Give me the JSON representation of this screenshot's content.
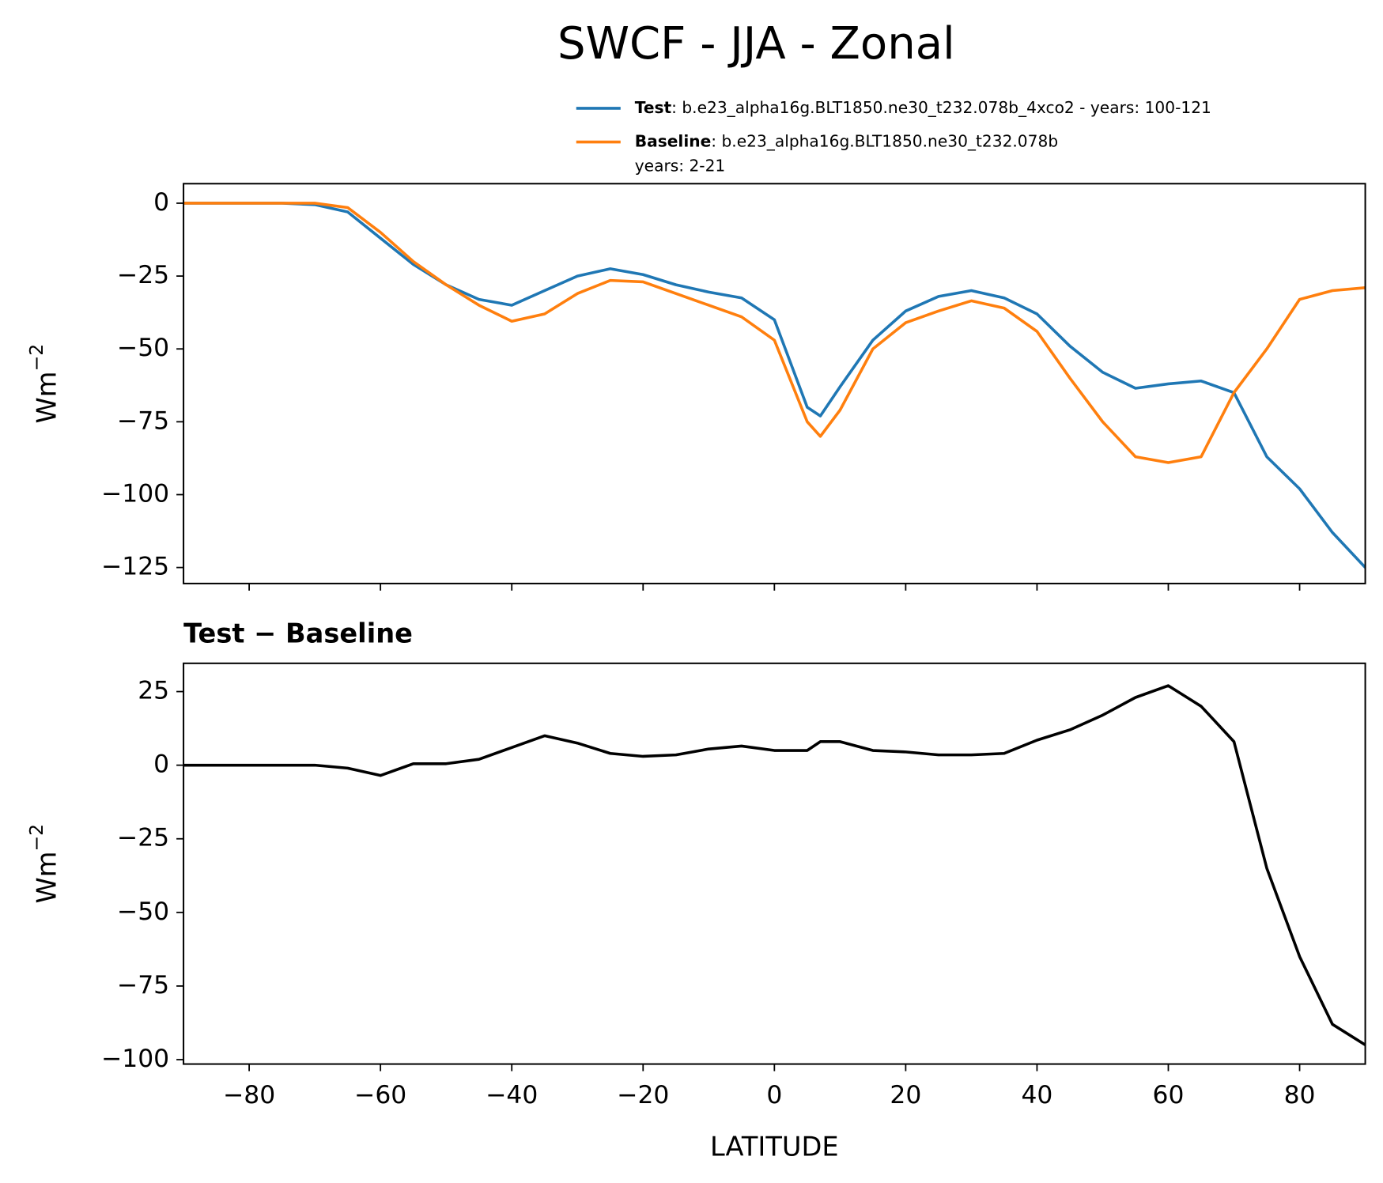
{
  "title": "SWCF - JJA - Zonal",
  "chart_data": [
    {
      "type": "line",
      "ylabel": "Wm",
      "ylabel_superscript": "−2",
      "x": [
        -90,
        -85,
        -80,
        -75,
        -70,
        -65,
        -60,
        -55,
        -50,
        -45,
        -40,
        -35,
        -30,
        -25,
        -20,
        -15,
        -10,
        -5,
        0,
        5,
        7,
        10,
        15,
        20,
        25,
        30,
        35,
        40,
        45,
        50,
        55,
        60,
        65,
        70,
        75,
        80,
        85,
        90
      ],
      "series": [
        {
          "name": "Test",
          "description": [
            ": b.e23_alpha16g.BLT1850.ne30_t232.078b_4xco2 - years: 100-121"
          ],
          "color": "#1f77b4",
          "values": [
            0,
            0,
            0,
            0,
            -0.5,
            -3,
            -12,
            -21,
            -28,
            -33,
            -35,
            -30,
            -25,
            -22.5,
            -24.5,
            -28,
            -30.5,
            -32.5,
            -40,
            -70,
            -73,
            -63,
            -47,
            -37,
            -32,
            -30,
            -32.5,
            -38,
            -49,
            -58,
            -63.5,
            -62,
            -61,
            -65,
            -87,
            -98,
            -113,
            -125
          ]
        },
        {
          "name": "Baseline",
          "description": [
            ": b.e23_alpha16g.BLT1850.ne30_t232.078b",
            "years: 2-21"
          ],
          "color": "#ff7f0e",
          "values": [
            0,
            0,
            0,
            0,
            0,
            -1.5,
            -10,
            -20,
            -28,
            -35,
            -40.5,
            -38,
            -31,
            -26.5,
            -27,
            -31,
            -35,
            -39,
            -47,
            -75,
            -80,
            -71,
            -50,
            -41,
            -37,
            -33.5,
            -36,
            -44,
            -60,
            -75,
            -87,
            -89,
            -87,
            -65,
            -50,
            -33,
            -30,
            -29
          ]
        }
      ],
      "xlim": [
        -90,
        90
      ],
      "xticks": [
        {
          "value": -80,
          "label": "−80"
        },
        {
          "value": -60,
          "label": "−60"
        },
        {
          "value": -40,
          "label": "−40"
        },
        {
          "value": -20,
          "label": "−20"
        },
        0,
        20,
        40,
        60,
        80
      ],
      "ylim": [
        -130.5,
        6.7
      ],
      "yticks": [
        0,
        {
          "value": -25,
          "label": "−25"
        },
        {
          "value": -50,
          "label": "−50"
        },
        {
          "value": -75,
          "label": "−75"
        },
        {
          "value": -100,
          "label": "−100"
        },
        {
          "value": -125,
          "label": "−125"
        }
      ]
    },
    {
      "type": "line",
      "subtitle": "Test − Baseline",
      "xlabel": "LATITUDE",
      "ylabel": "Wm",
      "ylabel_superscript": "−2",
      "x": [
        -90,
        -85,
        -80,
        -75,
        -70,
        -65,
        -60,
        -55,
        -50,
        -45,
        -40,
        -35,
        -30,
        -25,
        -20,
        -15,
        -10,
        -5,
        0,
        5,
        7,
        10,
        15,
        20,
        25,
        30,
        35,
        40,
        45,
        50,
        55,
        60,
        65,
        70,
        75,
        80,
        85,
        90
      ],
      "series": [
        {
          "color": "#000000",
          "values": [
            0,
            0,
            0,
            0,
            0,
            -1,
            -3.5,
            0.5,
            0.5,
            2,
            6,
            10,
            7.5,
            4,
            3,
            3.5,
            5.5,
            6.5,
            5,
            5,
            8,
            8,
            5,
            4.5,
            3.5,
            3.5,
            4,
            8.5,
            12,
            17,
            23,
            27,
            20,
            8,
            -35,
            -65,
            -88,
            -95
          ]
        }
      ],
      "xlim": [
        -90,
        90
      ],
      "xticks": [
        {
          "value": -80,
          "label": "−80"
        },
        {
          "value": -60,
          "label": "−60"
        },
        {
          "value": -40,
          "label": "−40"
        },
        {
          "value": -20,
          "label": "−20"
        },
        0,
        20,
        40,
        60,
        80
      ],
      "ylim": [
        -101.5,
        34.6
      ],
      "yticks": [
        25,
        0,
        {
          "value": -25,
          "label": "−25"
        },
        {
          "value": -50,
          "label": "−50"
        },
        {
          "value": -75,
          "label": "−75"
        },
        {
          "value": -100,
          "label": "−100"
        }
      ]
    }
  ]
}
